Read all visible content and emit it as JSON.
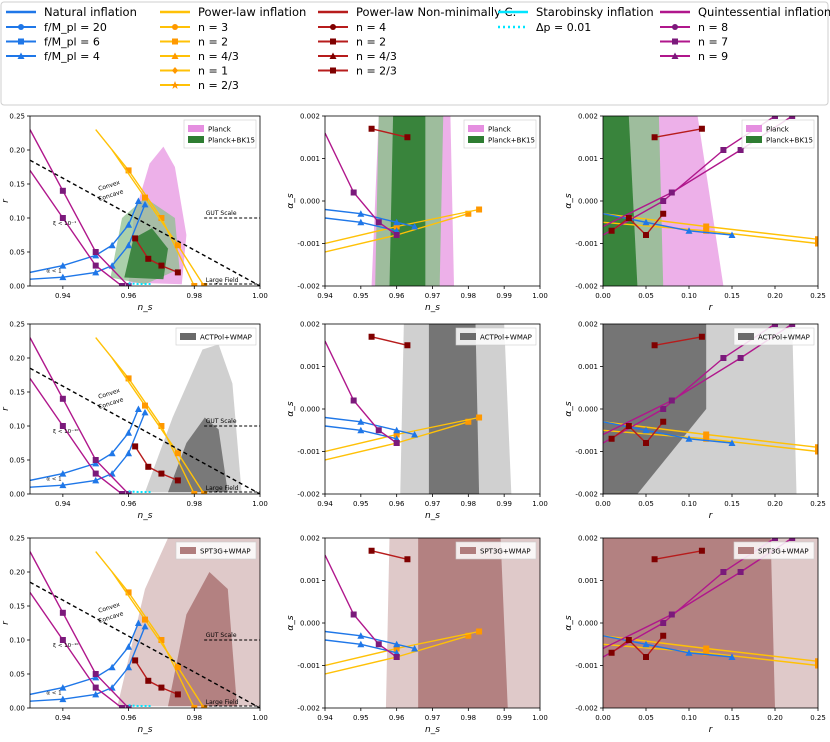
{
  "colors": {
    "natural": "#1f77e8",
    "powerlaw": "#ffc107",
    "powerlaw_marker": "#ff9800",
    "nonminimal": "#b71c1c",
    "nonminimal_marker": "#7f0000",
    "starobinsky": "#00e5ff",
    "quintessential": "#b0178c",
    "quint_marker": "#7b1a7b",
    "planck": "#e58fe0",
    "bk15_light": "#8fc08f",
    "bk15_dark": "#2e7d32",
    "act_light": "#c8c8c8",
    "act_dark": "#6a6a6a",
    "spt_light": "#dcc3c3",
    "spt_dark": "#b07d7d"
  },
  "legend": {
    "natural": {
      "title": "Natural inflation",
      "items": [
        {
          "label": "f/M_pl = 20",
          "marker": "circle"
        },
        {
          "label": "f/M_pl = 6",
          "marker": "square"
        },
        {
          "label": "f/M_pl = 4",
          "marker": "triangle"
        }
      ]
    },
    "powerlaw": {
      "title": "Power-law inflation",
      "items": [
        {
          "label": "n = 3",
          "marker": "circle"
        },
        {
          "label": "n = 2",
          "marker": "square"
        },
        {
          "label": "n = 4/3",
          "marker": "triangle"
        },
        {
          "label": "n = 1",
          "marker": "diamond"
        },
        {
          "label": "n = 2/3",
          "marker": "star"
        }
      ]
    },
    "nonminimal": {
      "title": "Power-law Non-minimally C.",
      "items": [
        {
          "label": "n = 4",
          "marker": "circle"
        },
        {
          "label": "n = 2",
          "marker": "square"
        },
        {
          "label": "n = 4/3",
          "marker": "triangle"
        },
        {
          "label": "n = 2/3",
          "marker": "square"
        }
      ]
    },
    "starobinsky": {
      "title": "Starobinsky inflation",
      "items": [
        {
          "label": "Δp = 0.01",
          "marker": "dotted"
        }
      ]
    },
    "quintessential": {
      "title": "Quintessential inflation",
      "items": [
        {
          "label": "n = 8",
          "marker": "circle"
        },
        {
          "label": "n = 7",
          "marker": "square"
        },
        {
          "label": "n = 9",
          "marker": "triangle"
        }
      ]
    }
  },
  "rows": [
    {
      "datasets": [
        {
          "label": "Planck",
          "color_key": "planck"
        },
        {
          "label": "Planck+BK15",
          "color_key": "bk15_dark"
        }
      ]
    },
    {
      "datasets": [
        {
          "label": "ACTPol+WMAP",
          "color_key": "act_dark"
        }
      ]
    },
    {
      "datasets": [
        {
          "label": "SPT3G+WMAP",
          "color_key": "spt_dark"
        }
      ]
    }
  ],
  "annotations": {
    "convex": "Convex",
    "concave": "Concave",
    "gut": "GUT Scale",
    "large_field": "Large Field",
    "alpha_less": "α < 1",
    "xi_row1": "ξ < 10⁻¹",
    "xi_row2": "ξ < 10⁻¹⁰",
    "xi_row3": "ξ < 10⁻¹⁰"
  },
  "chart_data": [
    {
      "type": "line",
      "panel": "r vs n_s",
      "xlabel": "n_s",
      "ylabel": "r",
      "xlim": [
        0.93,
        1.0
      ],
      "ylim": [
        0.0,
        0.25
      ],
      "xticks": [
        0.94,
        0.96,
        0.98,
        1.0
      ],
      "yticks": [
        0.0,
        0.05,
        0.1,
        0.15,
        0.2,
        0.25
      ],
      "tick_labels_x": [
        "0.94",
        "0.96",
        "0.98",
        "1.00"
      ],
      "tick_labels_y": [
        "0.00",
        "0.05",
        "0.10",
        "0.15",
        "0.20",
        "0.25"
      ],
      "series": [
        {
          "name": "Natural f/Mpl=20",
          "color_key": "natural",
          "x": [
            0.93,
            0.94,
            0.95,
            0.955,
            0.96,
            0.965
          ],
          "y": [
            0.01,
            0.013,
            0.02,
            0.03,
            0.06,
            0.12
          ]
        },
        {
          "name": "Natural f/Mpl=6",
          "color_key": "natural",
          "x": [
            0.93,
            0.94,
            0.95,
            0.955,
            0.96,
            0.963
          ],
          "y": [
            0.02,
            0.03,
            0.045,
            0.06,
            0.09,
            0.125
          ]
        },
        {
          "name": "Power-law n=3",
          "color_key": "powerlaw",
          "x": [
            0.95,
            0.96,
            0.97,
            0.98
          ],
          "y": [
            0.23,
            0.17,
            0.1,
            0.0
          ]
        },
        {
          "name": "Power-law n=2",
          "color_key": "powerlaw",
          "x": [
            0.955,
            0.965,
            0.975,
            0.983
          ],
          "y": [
            0.2,
            0.13,
            0.06,
            0.0
          ]
        },
        {
          "name": "Quintessential n=8",
          "color_key": "quintessential",
          "x": [
            0.93,
            0.94,
            0.95,
            0.96
          ],
          "y": [
            0.23,
            0.14,
            0.05,
            0.0
          ]
        },
        {
          "name": "Quintessential n=7",
          "color_key": "quintessential",
          "x": [
            0.93,
            0.94,
            0.95,
            0.958
          ],
          "y": [
            0.17,
            0.1,
            0.03,
            0.0
          ]
        },
        {
          "name": "Non-minimal n=4",
          "color_key": "nonminimal",
          "x": [
            0.962,
            0.966,
            0.97,
            0.975
          ],
          "y": [
            0.07,
            0.04,
            0.03,
            0.02
          ]
        },
        {
          "name": "Starobinsky",
          "color_key": "starobinsky",
          "x": [
            0.96,
            0.963,
            0.967
          ],
          "y": [
            0.004,
            0.003,
            0.003
          ]
        },
        {
          "name": "Convex/Concave boundary",
          "color_key": "black",
          "x": [
            0.93,
            1.0
          ],
          "y": [
            0.185,
            0.0
          ]
        }
      ]
    },
    {
      "type": "line",
      "panel": "alpha_s vs n_s",
      "xlabel": "n_s",
      "ylabel": "α_s",
      "xlim": [
        0.94,
        1.0
      ],
      "ylim": [
        -0.002,
        0.002
      ],
      "xticks": [
        0.94,
        0.95,
        0.96,
        0.97,
        0.98,
        0.99,
        1.0
      ],
      "tick_labels_x": [
        "0.94",
        "0.95",
        "0.96",
        "0.97",
        "0.98",
        "0.99",
        "1.00"
      ],
      "tick_labels_y": [
        "-0.002",
        "-0.001",
        "0.000",
        "0.001",
        "0.002"
      ],
      "series": [
        {
          "name": "Power-law",
          "color_key": "powerlaw",
          "x": [
            0.94,
            0.96,
            0.98
          ],
          "y": [
            -0.0012,
            -0.0008,
            -0.0003
          ]
        },
        {
          "name": "Power-law 2",
          "color_key": "powerlaw",
          "x": [
            0.94,
            0.96,
            0.983
          ],
          "y": [
            -0.001,
            -0.0006,
            -0.0002
          ]
        },
        {
          "name": "Natural",
          "color_key": "natural",
          "x": [
            0.94,
            0.95,
            0.96,
            0.965
          ],
          "y": [
            -0.0002,
            -0.0003,
            -0.0005,
            -0.0006
          ]
        },
        {
          "name": "Natural 2",
          "color_key": "natural",
          "x": [
            0.94,
            0.95,
            0.96
          ],
          "y": [
            -0.0004,
            -0.0005,
            -0.0007
          ]
        },
        {
          "name": "Quintessential",
          "color_key": "quintessential",
          "x": [
            0.94,
            0.948,
            0.955,
            0.96
          ],
          "y": [
            0.0016,
            0.0002,
            -0.0005,
            -0.0008
          ]
        },
        {
          "name": "Non-minimal",
          "color_key": "nonminimal",
          "x": [
            0.953,
            0.963
          ],
          "y": [
            0.0017,
            0.0015
          ]
        }
      ]
    },
    {
      "type": "line",
      "panel": "alpha_s vs r",
      "xlabel": "r",
      "ylabel": "α_s",
      "xlim": [
        0.0,
        0.25
      ],
      "ylim": [
        -0.002,
        0.002
      ],
      "xticks": [
        0.0,
        0.05,
        0.1,
        0.15,
        0.2,
        0.25
      ],
      "tick_labels_x": [
        "0.00",
        "0.05",
        "0.10",
        "0.15",
        "0.20",
        "0.25"
      ],
      "tick_labels_y": [
        "-0.002",
        "-0.001",
        "0.000",
        "0.001",
        "0.002"
      ],
      "series": [
        {
          "name": "Power-law",
          "color_key": "powerlaw",
          "x": [
            0.0,
            0.12,
            0.25
          ],
          "y": [
            -0.0003,
            -0.0006,
            -0.0009
          ]
        },
        {
          "name": "Power-law 2",
          "color_key": "powerlaw",
          "x": [
            0.0,
            0.12,
            0.25
          ],
          "y": [
            -0.0005,
            -0.0007,
            -0.001
          ]
        },
        {
          "name": "Natural",
          "color_key": "natural",
          "x": [
            0.0,
            0.05,
            0.1,
            0.15
          ],
          "y": [
            -0.0003,
            -0.0005,
            -0.0007,
            -0.0008
          ]
        },
        {
          "name": "Quintessential",
          "color_key": "quintessential",
          "x": [
            0.0,
            0.07,
            0.14,
            0.2
          ],
          "y": [
            -0.0008,
            0.0,
            0.0012,
            0.002
          ]
        },
        {
          "name": "Quintessential 2",
          "color_key": "quintessential",
          "x": [
            0.0,
            0.08,
            0.16,
            0.22
          ],
          "y": [
            -0.0006,
            0.0002,
            0.0012,
            0.002
          ]
        },
        {
          "name": "Non-minimal",
          "color_key": "nonminimal",
          "x": [
            0.06,
            0.115
          ],
          "y": [
            0.0015,
            0.0017
          ]
        },
        {
          "name": "Non-minimal 2",
          "color_key": "nonminimal",
          "x": [
            0.01,
            0.03,
            0.05,
            0.07
          ],
          "y": [
            -0.0007,
            -0.0004,
            -0.0008,
            -0.0003
          ]
        }
      ]
    }
  ]
}
